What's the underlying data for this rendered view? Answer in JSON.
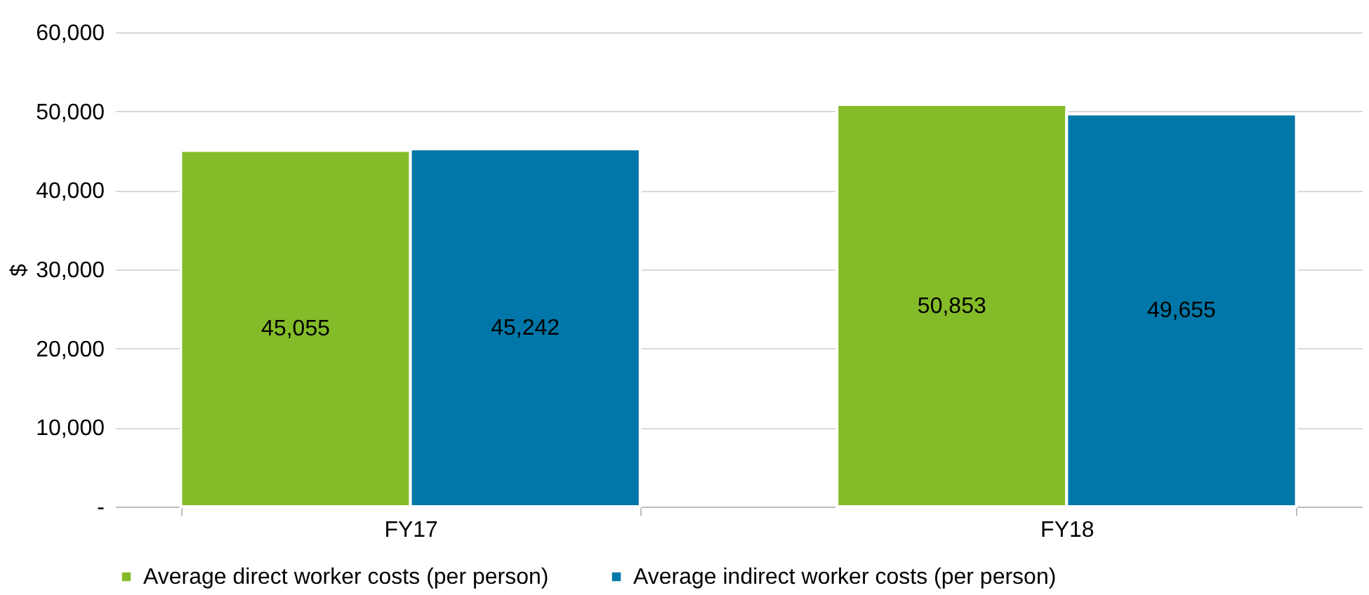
{
  "chart_data": {
    "type": "bar",
    "categories": [
      "FY17",
      "FY18"
    ],
    "ylabel": "$",
    "series": [
      {
        "name": "Average direct worker costs (per person)",
        "color": "#84bb29",
        "values": [
          45055,
          50853
        ],
        "value_labels": [
          "45,055",
          "50,853"
        ]
      },
      {
        "name": "Average indirect worker costs (per person)",
        "color": "#0077a8",
        "values": [
          45242,
          49655
        ],
        "value_labels": [
          "45,242",
          "49,655"
        ]
      }
    ],
    "ylim": [
      0,
      60000
    ],
    "yticks": [
      {
        "value": 0,
        "label": "-"
      },
      {
        "value": 10000,
        "label": "10,000"
      },
      {
        "value": 20000,
        "label": "20,000"
      },
      {
        "value": 30000,
        "label": "30,000"
      },
      {
        "value": 40000,
        "label": "40,000"
      },
      {
        "value": 50000,
        "label": "50,000"
      },
      {
        "value": 60000,
        "label": "60,000"
      }
    ],
    "grid": "y",
    "legend": "bottom"
  }
}
